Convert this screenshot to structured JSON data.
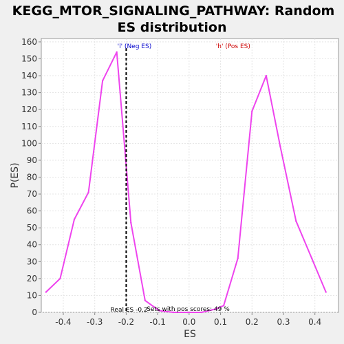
{
  "chart_data": {
    "type": "line",
    "title_line1": "KEGG_MTOR_SIGNALING_PATHWAY: Random",
    "title_line2": "ES distribution",
    "xlabel": "ES",
    "ylabel": "P(ES)",
    "xlim": [
      -0.47,
      0.475
    ],
    "ylim": [
      0,
      162
    ],
    "x_ticks": [
      -0.4,
      -0.3,
      -0.2,
      -0.1,
      0.0,
      0.1,
      0.2,
      0.3,
      0.4
    ],
    "x_tick_labels": [
      "-0.4",
      "-0.3",
      "-0.2",
      "-0.1",
      "0.0",
      "0.1",
      "0.2",
      "0.3",
      "0.4"
    ],
    "y_ticks": [
      0,
      10,
      20,
      30,
      40,
      50,
      60,
      70,
      80,
      90,
      100,
      110,
      120,
      130,
      140,
      150,
      160
    ],
    "grid": true,
    "series": [
      {
        "color": "#ee44ee",
        "x": [
          -0.455,
          -0.41,
          -0.365,
          -0.32,
          -0.275,
          -0.23,
          -0.185,
          -0.14,
          -0.095,
          -0.05,
          -0.005,
          0.04,
          0.085,
          0.11,
          0.155,
          0.2,
          0.245,
          0.29,
          0.34,
          0.39,
          0.435
        ],
        "y": [
          12,
          20,
          55,
          71,
          137,
          154,
          53,
          7,
          1,
          0,
          0,
          0,
          2,
          4,
          32,
          119,
          140,
          98,
          54,
          32,
          12
        ]
      }
    ],
    "real_es_x": -0.2,
    "annotations": {
      "neg_label": "'l' (Neg ES)",
      "neg_color": "#0000cc",
      "pos_label": "'h' (Pos ES)",
      "pos_color": "#cc0000",
      "real_es_label": "Real ES -0.2",
      "pos_scores_label": "Sets with pos scores: 49 %"
    }
  }
}
